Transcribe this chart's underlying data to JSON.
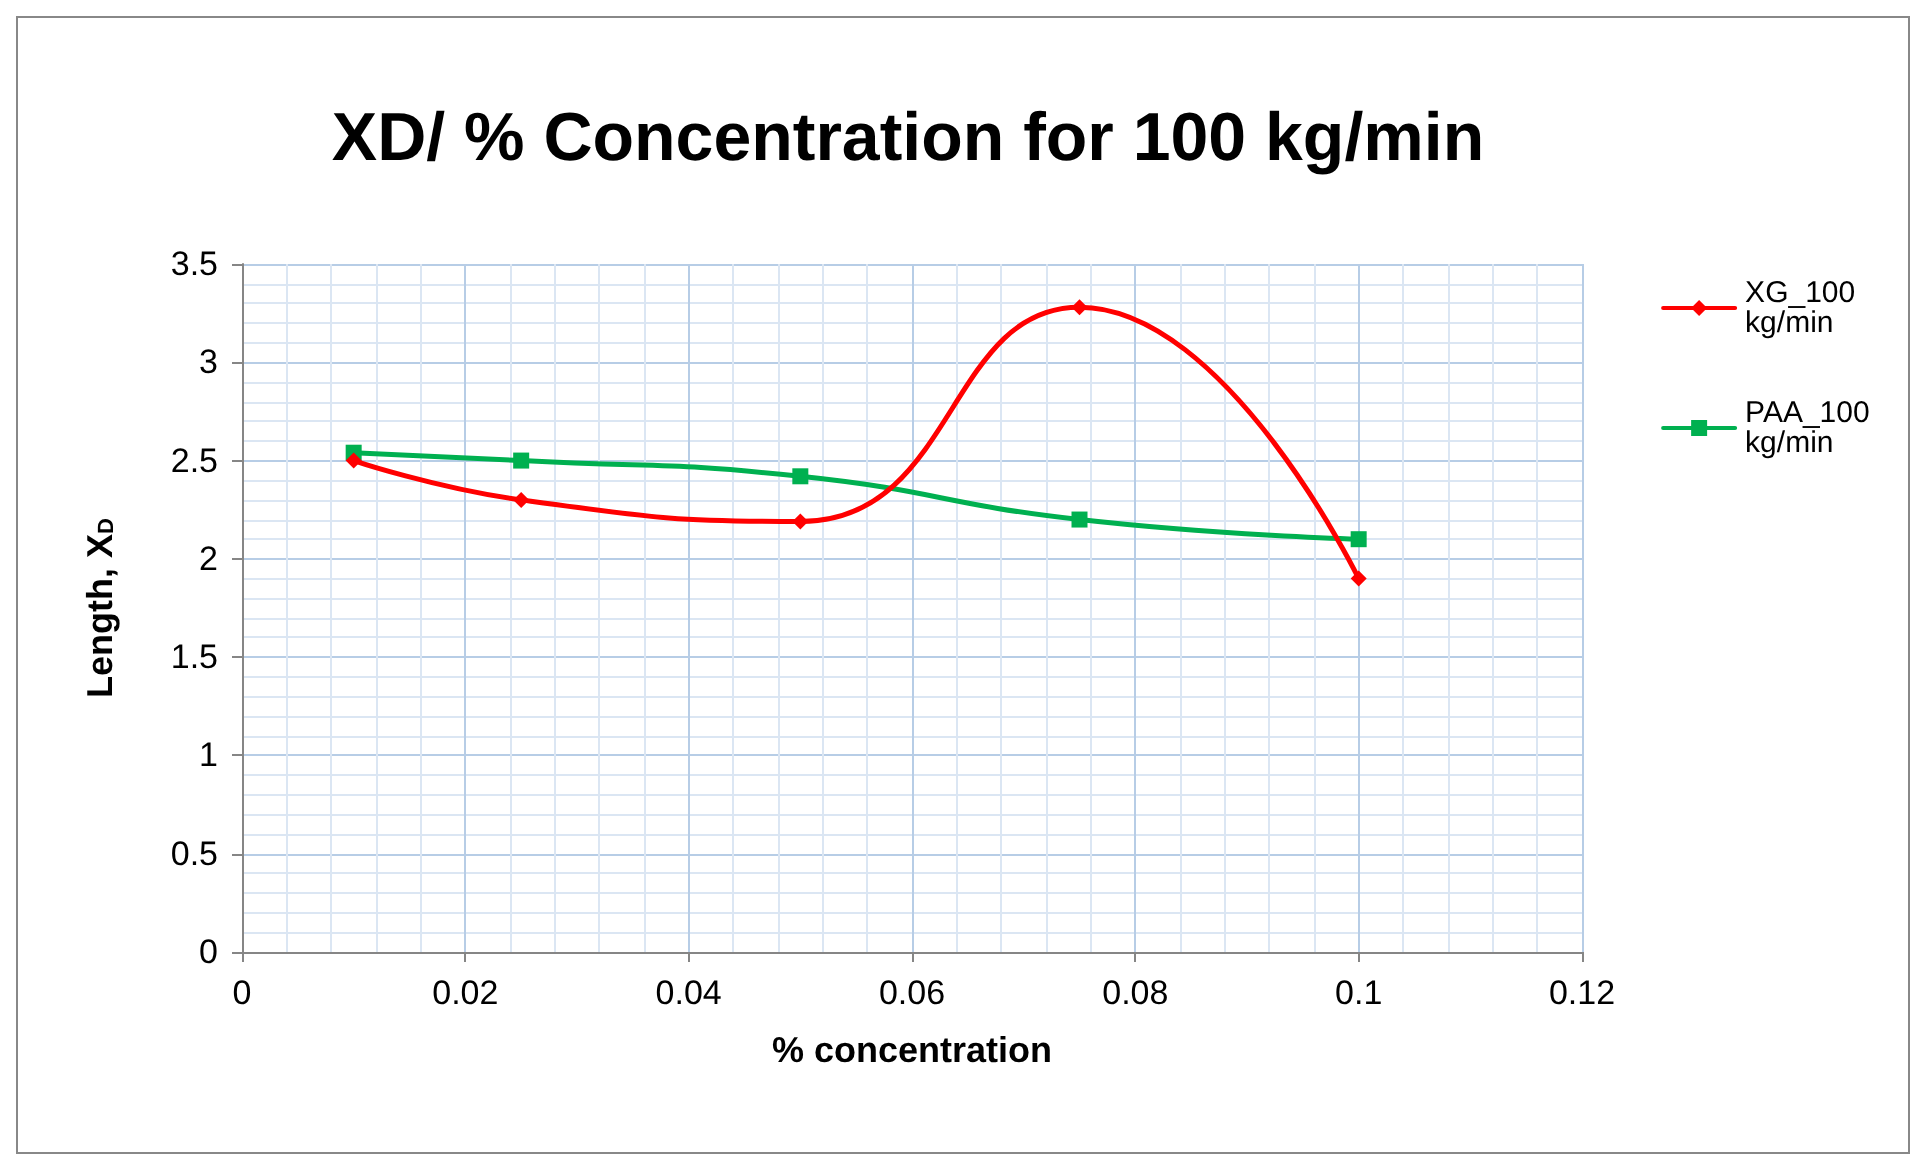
{
  "chart_data": {
    "type": "line",
    "title": "XD/ % Concentration for 100 kg/min",
    "xlabel": "% concentration",
    "ylabel": "Length, X$_{D}$",
    "x": [
      0.01,
      0.025,
      0.05,
      0.075,
      0.1
    ],
    "series": [
      {
        "name": "XG_100 kg/min",
        "color": "#ff0000",
        "marker": "diamond",
        "values": [
          2.5,
          2.3,
          2.19,
          3.28,
          1.9
        ]
      },
      {
        "name": "PAA_100 kg/min",
        "color": "#00b050",
        "marker": "square",
        "values": [
          2.54,
          2.5,
          2.42,
          2.2,
          2.1
        ]
      }
    ],
    "xlim": [
      0,
      0.12
    ],
    "xticks": [
      0,
      0.02,
      0.04,
      0.06,
      0.08,
      0.1,
      0.12
    ],
    "ylim": [
      0,
      3.5
    ],
    "yticks": [
      0,
      0.5,
      1,
      1.5,
      2,
      2.5,
      3,
      3.5
    ],
    "grid": true,
    "legend": "right",
    "line_style": "solid"
  }
}
